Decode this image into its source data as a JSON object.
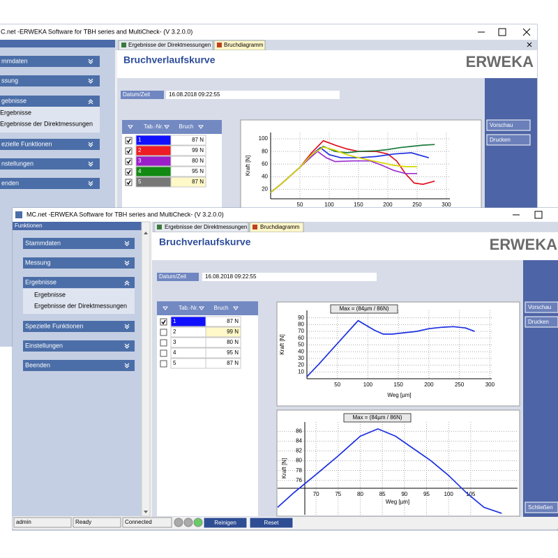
{
  "back_window": {
    "title": "C.net  -ERWEKA Software for TBH series and MultiCheck-  (V 3.2.0.0)",
    "sidebar": {
      "items": [
        "mmdaten",
        "ssung",
        "gebnisse",
        "Ergebnisse",
        "Ergebnisse der Direktmessungen",
        "ezielle Funktionen",
        "nstellungen",
        "enden"
      ]
    },
    "tabs": [
      "Ergebnisse der Direktmessungen",
      "Bruchdiagramm"
    ],
    "heading": "Bruchverlaufskurve",
    "logo": "ERWEKA",
    "datetime_label": "Datum/Zeit",
    "datetime": "16.08.2018 09:22:55",
    "buttons": [
      "Vorschau",
      "Drucken"
    ],
    "table": {
      "headers": [
        "Tab.-Nr.",
        "Bruch"
      ],
      "rows": [
        {
          "nr": "1",
          "color": "#1010ff",
          "bruch": "87 N",
          "checked": true
        },
        {
          "nr": "2",
          "color": "#ee1c24",
          "bruch": "99 N",
          "checked": true
        },
        {
          "nr": "3",
          "color": "#9b1fc9",
          "bruch": "80 N",
          "checked": true
        },
        {
          "nr": "4",
          "color": "#128a12",
          "bruch": "95 N",
          "checked": true
        },
        {
          "nr": "5",
          "color": "#777777",
          "bruch": "87 N",
          "checked": true,
          "selected": true
        }
      ]
    },
    "chart": {
      "type": "line",
      "y_label": "Kraft [N]",
      "xlim": [
        0,
        306
      ],
      "ylim": [
        5,
        110
      ],
      "xticks": [
        50,
        100,
        150,
        200,
        250,
        300
      ],
      "yticks": [
        20,
        40,
        60,
        80,
        100
      ],
      "grid": true,
      "series": [
        {
          "color": "#e01020",
          "x": [
            0,
            20,
            50,
            70,
            90,
            110,
            130,
            150,
            180,
            200,
            215,
            230,
            245,
            260,
            280
          ],
          "values": [
            15,
            30,
            55,
            78,
            97,
            90,
            84,
            80,
            80,
            76,
            65,
            45,
            30,
            28,
            33
          ]
        },
        {
          "color": "#1a7a3a",
          "x": [
            0,
            20,
            50,
            70,
            90,
            110,
            130,
            150,
            180,
            200,
            220,
            240,
            260,
            280
          ],
          "values": [
            15,
            30,
            55,
            75,
            88,
            80,
            78,
            80,
            81,
            83,
            86,
            88,
            90,
            91
          ]
        },
        {
          "color": "#2030e0",
          "x": [
            0,
            20,
            50,
            70,
            85,
            100,
            120,
            150,
            180,
            210,
            240,
            270
          ],
          "values": [
            15,
            30,
            55,
            75,
            86,
            75,
            70,
            70,
            72,
            76,
            78,
            70
          ]
        },
        {
          "color": "#9b30d0",
          "x": [
            0,
            20,
            50,
            70,
            80,
            95,
            110,
            140,
            170,
            190,
            210,
            230,
            250
          ],
          "values": [
            15,
            30,
            55,
            72,
            80,
            70,
            64,
            65,
            65,
            58,
            50,
            45,
            45
          ]
        },
        {
          "color": "#d6d600",
          "x": [
            0,
            20,
            50,
            70,
            90,
            110,
            130,
            150,
            170,
            190,
            210,
            230,
            250
          ],
          "values": [
            15,
            30,
            55,
            75,
            87,
            82,
            75,
            70,
            66,
            62,
            58,
            56,
            56
          ]
        }
      ]
    }
  },
  "front_window": {
    "title": "MC.net  -ERWEKA Software for TBH series and MultiCheck-  (V 3.2.0.0)",
    "sidebar": {
      "header": "Funktionen",
      "items": [
        "Stammdaten",
        "Messung",
        "Ergebnisse",
        "Ergebnisse",
        "Ergebnisse der Direktmessungen",
        "Spezielle Funktionen",
        "Einstellungen",
        "Beenden"
      ]
    },
    "tabs": [
      "Ergebnisse der Direktmessungen",
      "Bruchdiagramm"
    ],
    "heading": "Bruchverlaufskurve",
    "logo": "ERWEKA",
    "datetime_label": "Datum/Zeit",
    "datetime": "16.08.2018 09:22:55",
    "buttons": [
      "Vorschau",
      "Drucken",
      "Schließen"
    ],
    "table": {
      "headers": [
        "Tab.-Nr.",
        "Bruch"
      ],
      "rows": [
        {
          "nr": "1",
          "color": "#1010ff",
          "bruch": "87 N",
          "checked": true
        },
        {
          "nr": "2",
          "bruch": "99 N",
          "checked": false,
          "selected": true
        },
        {
          "nr": "3",
          "bruch": "80 N",
          "checked": false
        },
        {
          "nr": "4",
          "bruch": "95 N",
          "checked": false
        },
        {
          "nr": "5",
          "bruch": "87 N",
          "checked": false
        }
      ]
    },
    "charts": [
      {
        "type": "line",
        "annotation": "Max = (84µm / 86N)",
        "x_label": "Weg [µm]",
        "y_label": "Kraft [N]",
        "xlim": [
          0,
          303
        ],
        "ylim": [
          0,
          101
        ],
        "xticks": [
          50,
          100,
          150,
          200,
          250,
          300
        ],
        "yticks": [
          10,
          20,
          30,
          40,
          50,
          60,
          70,
          80,
          90
        ],
        "grid": true,
        "series": [
          {
            "color": "#1a2ee0",
            "x": [
              0,
              20,
              40,
              60,
              84,
              95,
              110,
              125,
              140,
              160,
              180,
              200,
              220,
              240,
              260,
              275
            ],
            "values": [
              3,
              22,
              42,
              62,
              86,
              80,
              72,
              66,
              66,
              68,
              70,
              74,
              76,
              77,
              75,
              70
            ]
          }
        ]
      },
      {
        "type": "line",
        "annotation": "Max = (84µm / 86N)",
        "x_label": "Weg [µm]",
        "y_label": "Kraft [N]",
        "xlim": [
          61.3,
          115.6
        ],
        "ylim": [
          69,
          87.9
        ],
        "xticks": [
          70,
          75,
          80,
          85,
          90,
          95,
          100,
          105
        ],
        "yticks": [
          76,
          78,
          80,
          82,
          84,
          86
        ],
        "grid": true,
        "series": [
          {
            "color": "#1a2ee0",
            "x": [
              61.3,
              65,
              70,
              75,
              80,
              84,
              88,
              92,
              96,
              100,
              104,
              108,
              112
            ],
            "values": [
              70.5,
              73.5,
              77.2,
              81,
              85,
              86.5,
              85,
              82.5,
              80,
              77,
              73.5,
              70.5,
              69.3
            ]
          }
        ]
      }
    ],
    "status": [
      "admin",
      "Ready",
      "Connected"
    ],
    "status_buttons": [
      "Reinigen",
      "Reset"
    ]
  }
}
